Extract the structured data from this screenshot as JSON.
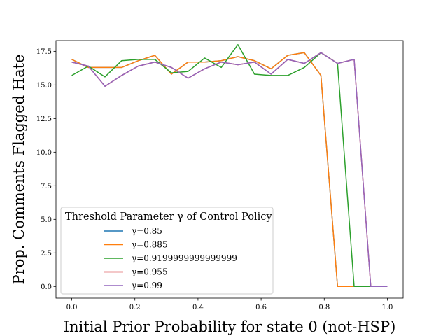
{
  "chart_data": {
    "type": "line",
    "xlabel": "Initial Prior Probability for state 0 (not-HSP)",
    "ylabel": "Prop. Comments Flagged Hate",
    "xlim": [
      -0.05,
      1.05
    ],
    "ylim": [
      -0.87,
      18.3
    ],
    "xticks": [
      0.0,
      0.2,
      0.4,
      0.6,
      0.8,
      1.0
    ],
    "xtick_labels": [
      "0.0",
      "0.2",
      "0.4",
      "0.6",
      "0.8",
      "1.0"
    ],
    "yticks": [
      0.0,
      2.5,
      5.0,
      7.5,
      10.0,
      12.5,
      15.0,
      17.5
    ],
    "ytick_labels": [
      "0.0",
      "2.5",
      "5.0",
      "7.5",
      "10.0",
      "12.5",
      "15.0",
      "17.5"
    ],
    "grid": false,
    "legend": {
      "title": "Threshold Parameter γ of Control Policy",
      "placement": "lower-left"
    },
    "x": [
      0.0,
      0.0526,
      0.1053,
      0.1579,
      0.2105,
      0.2632,
      0.3158,
      0.3684,
      0.4211,
      0.4737,
      0.5263,
      0.5789,
      0.6316,
      0.6842,
      0.7368,
      0.7895,
      0.8421,
      0.8947,
      0.9474,
      1.0
    ],
    "series": [
      {
        "name": "γ=0.85",
        "color": "#1f77b4",
        "values": [
          16.9,
          16.3,
          16.3,
          16.3,
          16.8,
          17.2,
          15.8,
          16.7,
          16.7,
          16.8,
          17.1,
          16.8,
          16.2,
          17.2,
          17.4,
          15.7,
          0.0,
          0.0,
          0.0,
          0.0
        ]
      },
      {
        "name": "γ=0.885",
        "color": "#ff7f0e",
        "values": [
          16.9,
          16.3,
          16.3,
          16.3,
          16.8,
          17.2,
          15.8,
          16.7,
          16.7,
          16.8,
          17.1,
          16.8,
          16.2,
          17.2,
          17.4,
          15.7,
          0.0,
          0.0,
          0.0,
          0.0
        ]
      },
      {
        "name": "γ=0.9199999999999999",
        "color": "#2ca02c",
        "values": [
          15.7,
          16.4,
          15.6,
          16.8,
          16.9,
          16.9,
          15.9,
          16.0,
          17.0,
          16.3,
          18.0,
          15.8,
          15.7,
          15.7,
          16.3,
          17.4,
          16.6,
          0.0,
          0.0,
          0.0
        ]
      },
      {
        "name": "γ=0.955",
        "color": "#d62728",
        "values": [
          16.7,
          16.4,
          14.9,
          15.7,
          16.4,
          16.7,
          16.3,
          15.5,
          16.2,
          16.7,
          16.5,
          16.7,
          15.8,
          16.9,
          16.6,
          17.4,
          16.6,
          16.9,
          0.0,
          0.0
        ]
      },
      {
        "name": "γ=0.99",
        "color": "#9467bd",
        "values": [
          16.7,
          16.4,
          14.9,
          15.7,
          16.4,
          16.7,
          16.3,
          15.5,
          16.2,
          16.7,
          16.5,
          16.7,
          15.8,
          16.9,
          16.6,
          17.4,
          16.6,
          16.9,
          0.0,
          0.0
        ]
      }
    ]
  }
}
